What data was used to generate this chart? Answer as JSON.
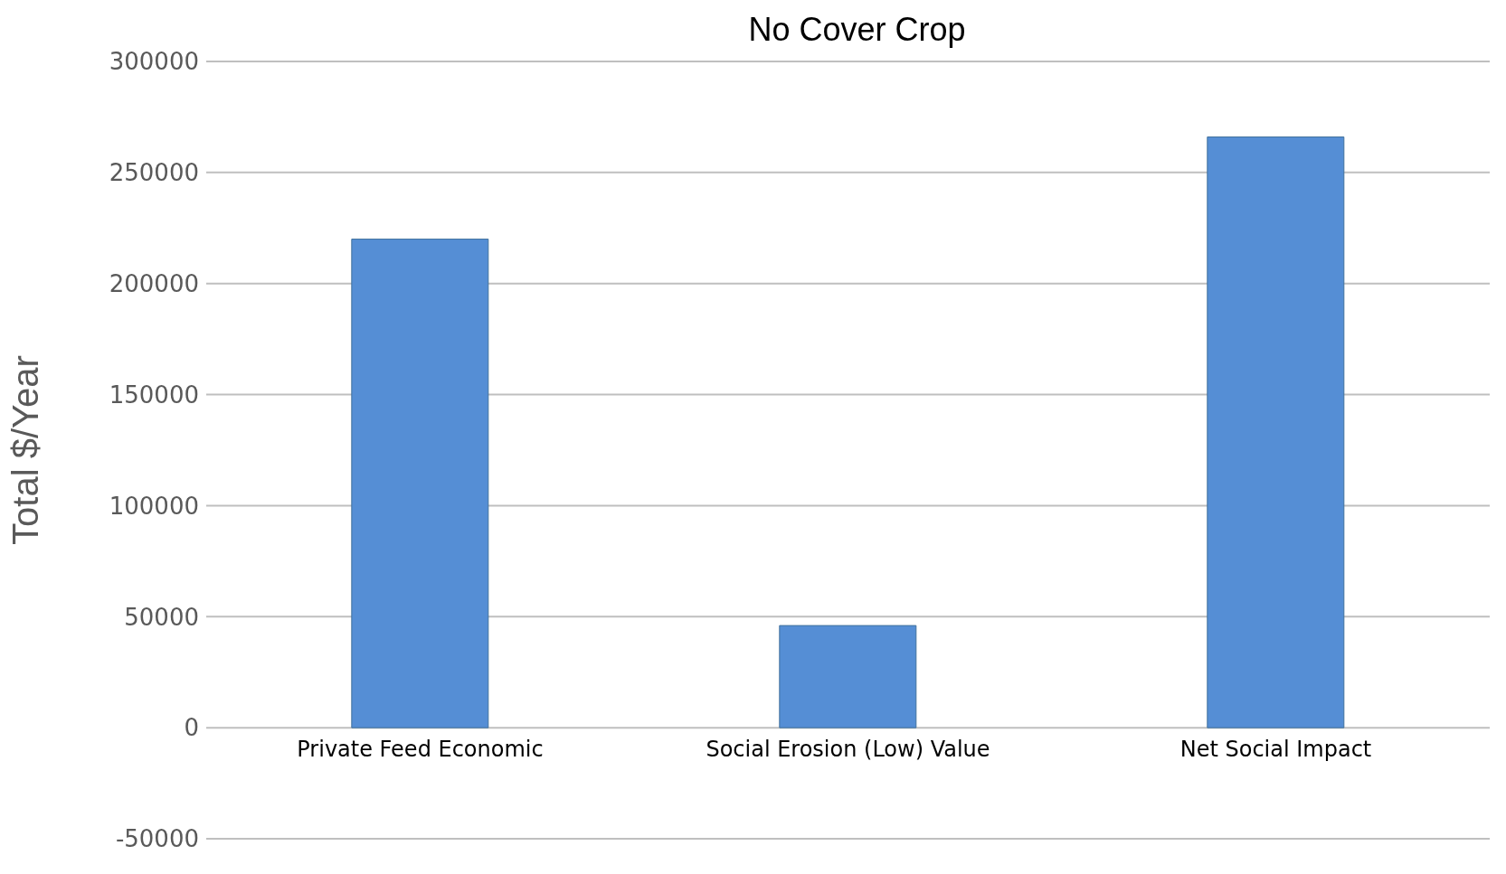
{
  "chart_data": {
    "type": "bar",
    "title": "No Cover Crop",
    "ylabel": "Total $/Year",
    "categories": [
      "Private Feed Economic",
      "Social Erosion (Low) Value",
      "Net Social Impact"
    ],
    "values": [
      220000,
      46000,
      266000
    ],
    "color": "#558ed5",
    "ylim": [
      -50000,
      300000
    ],
    "yticks": [
      -50000,
      0,
      50000,
      100000,
      150000,
      200000,
      250000,
      300000
    ],
    "grid": "y"
  }
}
